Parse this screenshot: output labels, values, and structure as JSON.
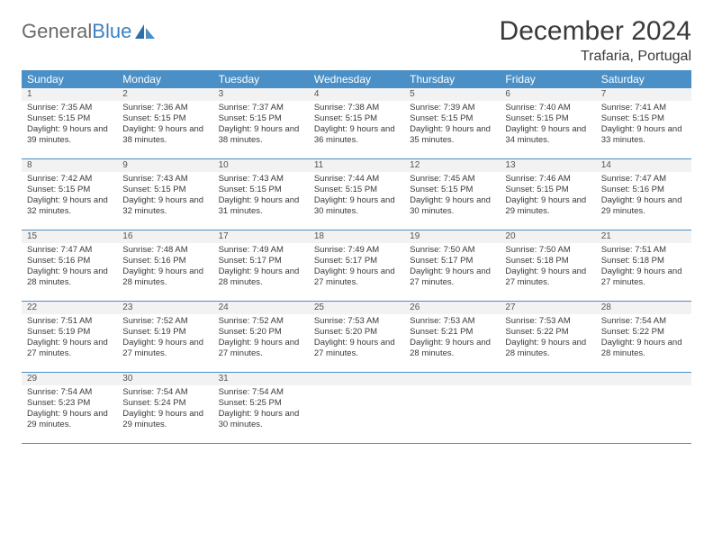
{
  "logo": {
    "text_gray": "General",
    "text_blue": "Blue"
  },
  "title": "December 2024",
  "location": "Trafaria, Portugal",
  "day_names": [
    "Sunday",
    "Monday",
    "Tuesday",
    "Wednesday",
    "Thursday",
    "Friday",
    "Saturday"
  ],
  "colors": {
    "header_bg": "#4a90c7",
    "header_text": "#ffffff",
    "date_bg": "#f2f2f2",
    "border": "#4a90c7",
    "text": "#3a3a3a"
  },
  "labels": {
    "sunrise": "Sunrise:",
    "sunset": "Sunset:",
    "daylight": "Daylight:"
  },
  "weeks": [
    [
      {
        "d": "1",
        "sr": "7:35 AM",
        "ss": "5:15 PM",
        "dl": "9 hours and 39 minutes."
      },
      {
        "d": "2",
        "sr": "7:36 AM",
        "ss": "5:15 PM",
        "dl": "9 hours and 38 minutes."
      },
      {
        "d": "3",
        "sr": "7:37 AM",
        "ss": "5:15 PM",
        "dl": "9 hours and 38 minutes."
      },
      {
        "d": "4",
        "sr": "7:38 AM",
        "ss": "5:15 PM",
        "dl": "9 hours and 36 minutes."
      },
      {
        "d": "5",
        "sr": "7:39 AM",
        "ss": "5:15 PM",
        "dl": "9 hours and 35 minutes."
      },
      {
        "d": "6",
        "sr": "7:40 AM",
        "ss": "5:15 PM",
        "dl": "9 hours and 34 minutes."
      },
      {
        "d": "7",
        "sr": "7:41 AM",
        "ss": "5:15 PM",
        "dl": "9 hours and 33 minutes."
      }
    ],
    [
      {
        "d": "8",
        "sr": "7:42 AM",
        "ss": "5:15 PM",
        "dl": "9 hours and 32 minutes."
      },
      {
        "d": "9",
        "sr": "7:43 AM",
        "ss": "5:15 PM",
        "dl": "9 hours and 32 minutes."
      },
      {
        "d": "10",
        "sr": "7:43 AM",
        "ss": "5:15 PM",
        "dl": "9 hours and 31 minutes."
      },
      {
        "d": "11",
        "sr": "7:44 AM",
        "ss": "5:15 PM",
        "dl": "9 hours and 30 minutes."
      },
      {
        "d": "12",
        "sr": "7:45 AM",
        "ss": "5:15 PM",
        "dl": "9 hours and 30 minutes."
      },
      {
        "d": "13",
        "sr": "7:46 AM",
        "ss": "5:15 PM",
        "dl": "9 hours and 29 minutes."
      },
      {
        "d": "14",
        "sr": "7:47 AM",
        "ss": "5:16 PM",
        "dl": "9 hours and 29 minutes."
      }
    ],
    [
      {
        "d": "15",
        "sr": "7:47 AM",
        "ss": "5:16 PM",
        "dl": "9 hours and 28 minutes."
      },
      {
        "d": "16",
        "sr": "7:48 AM",
        "ss": "5:16 PM",
        "dl": "9 hours and 28 minutes."
      },
      {
        "d": "17",
        "sr": "7:49 AM",
        "ss": "5:17 PM",
        "dl": "9 hours and 28 minutes."
      },
      {
        "d": "18",
        "sr": "7:49 AM",
        "ss": "5:17 PM",
        "dl": "9 hours and 27 minutes."
      },
      {
        "d": "19",
        "sr": "7:50 AM",
        "ss": "5:17 PM",
        "dl": "9 hours and 27 minutes."
      },
      {
        "d": "20",
        "sr": "7:50 AM",
        "ss": "5:18 PM",
        "dl": "9 hours and 27 minutes."
      },
      {
        "d": "21",
        "sr": "7:51 AM",
        "ss": "5:18 PM",
        "dl": "9 hours and 27 minutes."
      }
    ],
    [
      {
        "d": "22",
        "sr": "7:51 AM",
        "ss": "5:19 PM",
        "dl": "9 hours and 27 minutes."
      },
      {
        "d": "23",
        "sr": "7:52 AM",
        "ss": "5:19 PM",
        "dl": "9 hours and 27 minutes."
      },
      {
        "d": "24",
        "sr": "7:52 AM",
        "ss": "5:20 PM",
        "dl": "9 hours and 27 minutes."
      },
      {
        "d": "25",
        "sr": "7:53 AM",
        "ss": "5:20 PM",
        "dl": "9 hours and 27 minutes."
      },
      {
        "d": "26",
        "sr": "7:53 AM",
        "ss": "5:21 PM",
        "dl": "9 hours and 28 minutes."
      },
      {
        "d": "27",
        "sr": "7:53 AM",
        "ss": "5:22 PM",
        "dl": "9 hours and 28 minutes."
      },
      {
        "d": "28",
        "sr": "7:54 AM",
        "ss": "5:22 PM",
        "dl": "9 hours and 28 minutes."
      }
    ],
    [
      {
        "d": "29",
        "sr": "7:54 AM",
        "ss": "5:23 PM",
        "dl": "9 hours and 29 minutes."
      },
      {
        "d": "30",
        "sr": "7:54 AM",
        "ss": "5:24 PM",
        "dl": "9 hours and 29 minutes."
      },
      {
        "d": "31",
        "sr": "7:54 AM",
        "ss": "5:25 PM",
        "dl": "9 hours and 30 minutes."
      },
      {
        "empty": true
      },
      {
        "empty": true
      },
      {
        "empty": true
      },
      {
        "empty": true
      }
    ]
  ]
}
